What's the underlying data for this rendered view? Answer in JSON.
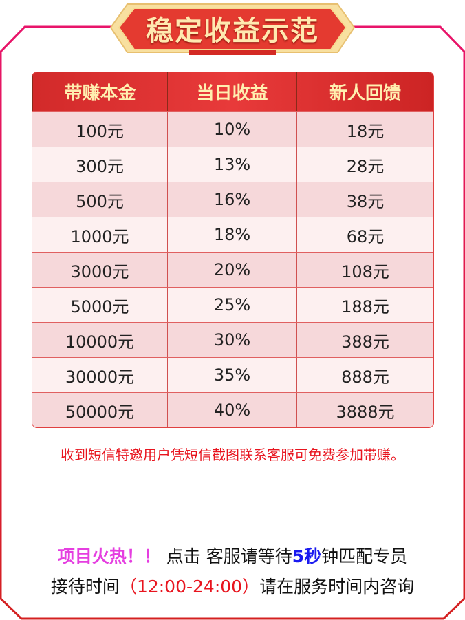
{
  "title": "稳定收益示范",
  "table": {
    "headers": [
      "带赚本金",
      "当日收益",
      "新人回馈"
    ],
    "rows": [
      [
        "100元",
        "10%",
        "18元"
      ],
      [
        "300元",
        "13%",
        "28元"
      ],
      [
        "500元",
        "16%",
        "38元"
      ],
      [
        "1000元",
        "18%",
        "68元"
      ],
      [
        "3000元",
        "20%",
        "108元"
      ],
      [
        "5000元",
        "25%",
        "188元"
      ],
      [
        "10000元",
        "30%",
        "388元"
      ],
      [
        "30000元",
        "35%",
        "888元"
      ],
      [
        "50000元",
        "40%",
        "3888元"
      ]
    ]
  },
  "note": "收到短信特邀用户凭短信截图联系客服可免费参加带赚。",
  "footer": {
    "hot": "项目火热！！",
    "line1_a": " 点击 客服请等待",
    "seconds": "5秒",
    "line1_b": "钟匹配专员",
    "line2_a": "接待时间",
    "hours": "（12:00-24:00）",
    "line2_b": "请在服务时间内咨询"
  },
  "colors": {
    "border_top": "#e8146a",
    "border_bottom": "#d42020",
    "accent": "#e8141e"
  }
}
